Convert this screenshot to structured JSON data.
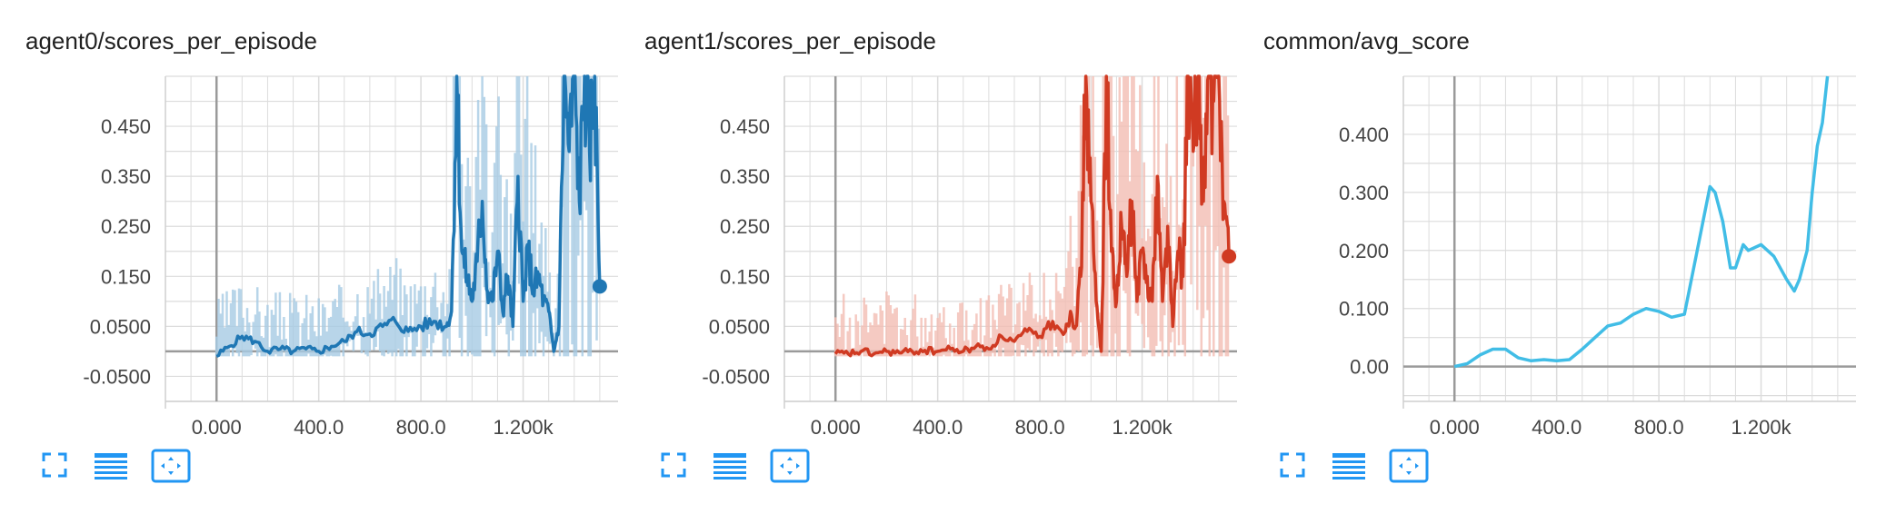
{
  "colors": {
    "accent": "#2196f3",
    "grid": "#dddddd",
    "axis": "#999999",
    "text": "#212121"
  },
  "toolbar_icons": [
    "fullscreen-icon",
    "data-list-icon",
    "fit-domain-icon"
  ],
  "charts": [
    {
      "title": "agent0/scores_per_episode",
      "color": "#1f77b4",
      "faded_color": "#a6cbe3",
      "yticks": [
        "0.450",
        "0.350",
        "0.250",
        "0.150",
        "0.0500",
        "-0.0500"
      ],
      "xticks": [
        "0.000",
        "400.0",
        "800.0",
        "1.200k"
      ]
    },
    {
      "title": "agent1/scores_per_episode",
      "color": "#d03a22",
      "faded_color": "#f2bdb3",
      "yticks": [
        "0.450",
        "0.350",
        "0.250",
        "0.150",
        "0.0500",
        "-0.0500"
      ],
      "xticks": [
        "0.000",
        "400.0",
        "800.0",
        "1.200k"
      ]
    },
    {
      "title": "common/avg_score",
      "color": "#41bde6",
      "yticks": [
        "0.400",
        "0.300",
        "0.200",
        "0.100",
        "0.00"
      ],
      "xticks": [
        "0.000",
        "400.0",
        "800.0",
        "1.200k"
      ]
    }
  ],
  "chart_data": [
    {
      "type": "line",
      "title": "agent0/scores_per_episode",
      "xlabel": "",
      "ylabel": "",
      "xlim": [
        -200,
        1600
      ],
      "ylim": [
        -0.1,
        0.55
      ],
      "grid": true,
      "series": [
        {
          "smoothed": true,
          "x": [
            0,
            50,
            100,
            150,
            200,
            250,
            300,
            350,
            400,
            450,
            500,
            550,
            600,
            650,
            700,
            750,
            800,
            850,
            900,
            920,
            940,
            960,
            980,
            1000,
            1020,
            1040,
            1060,
            1080,
            1100,
            1120,
            1140,
            1160,
            1180,
            1200,
            1220,
            1240,
            1260,
            1280,
            1300,
            1320,
            1340,
            1360,
            1380,
            1400,
            1420,
            1440,
            1460,
            1480,
            1500
          ],
          "y": [
            -0.01,
            0.01,
            0.03,
            0.02,
            0.0,
            0.005,
            0.0,
            0.005,
            0.0,
            0.01,
            0.02,
            0.04,
            0.035,
            0.05,
            0.06,
            0.04,
            0.05,
            0.06,
            0.05,
            0.08,
            0.55,
            0.2,
            0.15,
            0.1,
            0.18,
            0.3,
            0.12,
            0.1,
            0.2,
            0.08,
            0.15,
            0.05,
            0.35,
            0.1,
            0.2,
            0.12,
            0.15,
            0.1,
            0.08,
            0.0,
            0.05,
            0.55,
            0.4,
            0.55,
            0.3,
            0.55,
            0.4,
            0.55,
            0.13
          ]
        }
      ]
    },
    {
      "type": "line",
      "title": "agent1/scores_per_episode",
      "xlabel": "",
      "ylabel": "",
      "xlim": [
        -200,
        1600
      ],
      "ylim": [
        -0.1,
        0.55
      ],
      "grid": true,
      "series": [
        {
          "smoothed": true,
          "x": [
            0,
            50,
            100,
            150,
            200,
            250,
            300,
            350,
            400,
            450,
            500,
            550,
            600,
            650,
            700,
            750,
            800,
            850,
            900,
            920,
            940,
            960,
            980,
            1000,
            1020,
            1040,
            1060,
            1080,
            1100,
            1120,
            1140,
            1160,
            1180,
            1200,
            1220,
            1240,
            1260,
            1280,
            1300,
            1320,
            1340,
            1360,
            1380,
            1400,
            1420,
            1440,
            1460,
            1480,
            1500,
            1520,
            1540
          ],
          "y": [
            -0.005,
            -0.005,
            0.0,
            -0.005,
            0.0,
            -0.003,
            0.0,
            0.002,
            0.0,
            0.005,
            0.0,
            0.01,
            0.005,
            0.03,
            0.02,
            0.04,
            0.03,
            0.06,
            0.04,
            0.08,
            0.05,
            0.15,
            0.55,
            0.3,
            0.1,
            0.0,
            0.55,
            0.2,
            0.1,
            0.25,
            0.15,
            0.3,
            0.1,
            0.2,
            0.15,
            0.1,
            0.35,
            0.1,
            0.25,
            0.05,
            0.2,
            0.15,
            0.55,
            0.4,
            0.55,
            0.3,
            0.55,
            0.5,
            0.55,
            0.3,
            0.19
          ]
        }
      ]
    },
    {
      "type": "line",
      "title": "common/avg_score",
      "xlabel": "",
      "ylabel": "",
      "xlim": [
        -200,
        1600
      ],
      "ylim": [
        -0.06,
        0.5
      ],
      "grid": true,
      "series": [
        {
          "x": [
            0,
            50,
            100,
            150,
            200,
            250,
            300,
            350,
            400,
            450,
            500,
            550,
            600,
            650,
            700,
            750,
            800,
            850,
            900,
            950,
            1000,
            1020,
            1050,
            1080,
            1100,
            1130,
            1150,
            1200,
            1250,
            1300,
            1330,
            1350,
            1380,
            1400,
            1420,
            1440,
            1460
          ],
          "y": [
            0.0,
            0.005,
            0.02,
            0.03,
            0.03,
            0.015,
            0.01,
            0.012,
            0.01,
            0.012,
            0.03,
            0.05,
            0.07,
            0.075,
            0.09,
            0.1,
            0.095,
            0.085,
            0.09,
            0.2,
            0.31,
            0.3,
            0.25,
            0.17,
            0.17,
            0.21,
            0.2,
            0.21,
            0.19,
            0.15,
            0.13,
            0.15,
            0.2,
            0.3,
            0.38,
            0.42,
            0.5
          ]
        }
      ]
    }
  ]
}
